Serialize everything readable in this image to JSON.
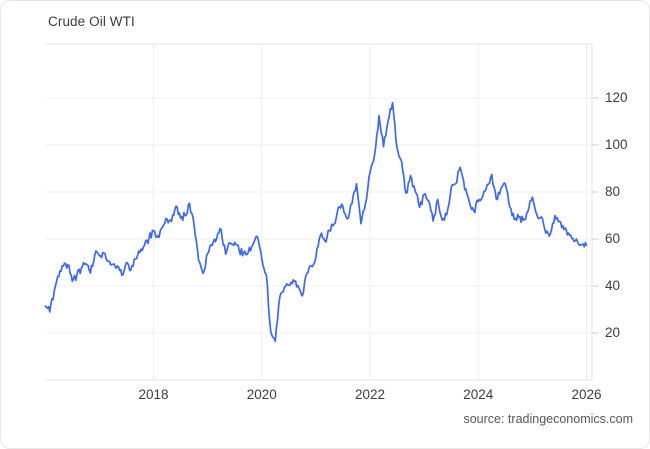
{
  "card": {
    "title": "Crude Oil WTI",
    "source_label": "source: tradingeconomics.com"
  },
  "colors": {
    "line": "#3e68ec",
    "grid": "#efefef",
    "axis_border": "#e4e4e4",
    "tick": "#cccccc",
    "text": "#3d3d3d",
    "source_text": "#575757"
  },
  "chart_data": {
    "type": "line",
    "title": "Crude Oil WTI",
    "series_name": "WTI crude oil price, USD per barrel",
    "source": "source: tradingeconomics.com",
    "grid": true,
    "legend": "none",
    "y_axis_side": "right",
    "xlim": [
      2016.0,
      2026.1
    ],
    "ylim": [
      0,
      143
    ],
    "x_tick_years": [
      2018,
      2020,
      2022,
      2024,
      2026
    ],
    "x_tick_labels": [
      "2018",
      "2020",
      "2022",
      "2024",
      "2026"
    ],
    "y_ticks": [
      20,
      40,
      60,
      80,
      100,
      120
    ],
    "y_tick_labels": [
      "20",
      "40",
      "60",
      "80",
      "100",
      "120"
    ],
    "x_start": 2016.0,
    "x_step_months": 1,
    "monthly_values": [
      31.5,
      29.0,
      38.0,
      44.0,
      48.5,
      49.0,
      42.0,
      44.5,
      47.5,
      49.5,
      45.5,
      53.5,
      52.8,
      54.0,
      50.5,
      49.2,
      48.5,
      44.5,
      50.0,
      47.0,
      51.5,
      54.3,
      57.3,
      60.2,
      63.5,
      61.5,
      64.9,
      68.5,
      67.5,
      74.0,
      68.9,
      69.9,
      75.2,
      66.0,
      50.9,
      45.3,
      53.8,
      57.2,
      60.1,
      63.9,
      53.5,
      58.2,
      58.6,
      55.1,
      54.1,
      54.2,
      57.5,
      61.1,
      51.6,
      44.8,
      20.5,
      16.5,
      35.3,
      39.3,
      40.3,
      42.6,
      40.2,
      35.8,
      45.3,
      48.5,
      52.2,
      61.5,
      59.2,
      63.6,
      66.3,
      73.5,
      73.9,
      68.5,
      75.0,
      83.5,
      66.5,
      75.2,
      88.2,
      95.7,
      112.5,
      99.3,
      110.0,
      118.0,
      98.6,
      93.0,
      79.5,
      87.0,
      80.5,
      73.5,
      78.9,
      76.3,
      67.6,
      76.8,
      68.1,
      70.3,
      81.8,
      83.6,
      90.5,
      81.0,
      76.0,
      71.9,
      75.9,
      78.3,
      83.2,
      87.5,
      77.0,
      81.5,
      83.4,
      73.6,
      68.2,
      69.3,
      68.0,
      71.7,
      77.8,
      70.3,
      69.4,
      62.5,
      62.2,
      70.0,
      67.5,
      64.0,
      62.5,
      60.2,
      58.8,
      57.6,
      57.3
    ]
  }
}
